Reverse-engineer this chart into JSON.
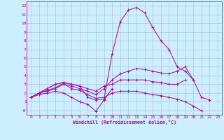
{
  "xlabel": "Windchill (Refroidissement éolien,°C)",
  "bg_color": "#cceeff",
  "line_color": "#aa00aa",
  "grid_color": "#aabbcc",
  "xlim": [
    -0.5,
    23.5
  ],
  "ylim": [
    -0.5,
    12.5
  ],
  "xticks": [
    0,
    1,
    2,
    3,
    4,
    5,
    6,
    7,
    8,
    9,
    10,
    11,
    12,
    13,
    14,
    15,
    16,
    17,
    18,
    19,
    20,
    21,
    22,
    23
  ],
  "yticks": [
    0,
    1,
    2,
    3,
    4,
    5,
    6,
    7,
    8,
    9,
    10,
    11,
    12
  ],
  "ytick_labels": [
    "-0",
    "1",
    "2",
    "3",
    "4",
    "5",
    "6",
    "7",
    "8",
    "9",
    "10",
    "11",
    "12"
  ],
  "lines": [
    [
      1.5,
      2.0,
      2.5,
      3.0,
      3.2,
      3.0,
      2.8,
      1.5,
      1.2,
      1.3,
      6.5,
      10.2,
      11.5,
      11.8,
      11.2,
      9.5,
      8.0,
      7.0,
      5.0,
      4.5,
      3.5,
      1.5,
      1.2,
      null
    ],
    [
      1.5,
      2.0,
      2.2,
      2.5,
      3.0,
      2.8,
      2.5,
      2.2,
      1.8,
      2.5,
      3.5,
      4.2,
      4.5,
      4.8,
      4.7,
      4.5,
      4.3,
      4.2,
      4.5,
      5.0,
      3.5,
      null,
      null,
      null
    ],
    [
      1.5,
      2.0,
      2.5,
      3.0,
      3.2,
      3.0,
      2.8,
      2.5,
      2.2,
      2.8,
      3.0,
      3.5,
      3.5,
      3.5,
      3.5,
      3.3,
      3.2,
      3.0,
      3.0,
      3.5,
      null,
      null,
      null,
      null
    ],
    [
      1.5,
      2.0,
      2.3,
      2.6,
      3.1,
      2.5,
      2.3,
      1.8,
      1.4,
      1.5,
      2.0,
      2.2,
      2.2,
      2.2,
      2.0,
      1.8,
      1.7,
      1.5,
      1.3,
      1.0,
      0.5,
      -0.05,
      null,
      null
    ],
    [
      1.5,
      1.8,
      2.0,
      2.2,
      2.0,
      1.5,
      1.0,
      0.7,
      -0.1,
      1.2,
      2.5,
      null,
      null,
      null,
      null,
      null,
      null,
      null,
      null,
      null,
      null,
      null,
      null,
      null
    ]
  ]
}
